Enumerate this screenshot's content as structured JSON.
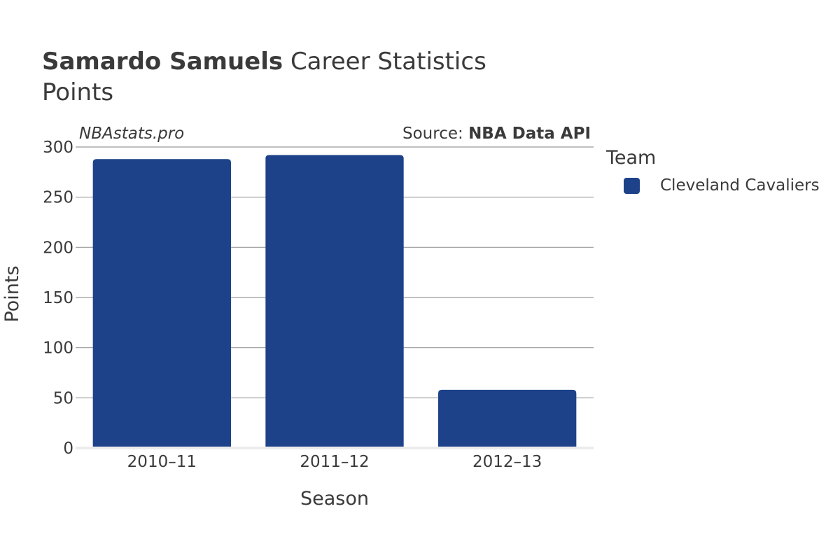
{
  "header": {
    "player_name": "Samardo Samuels",
    "title_suffix": "Career Statistics",
    "subtitle": "Points"
  },
  "watermark": "NBAstats.pro",
  "source": {
    "prefix": "Source: ",
    "name": "NBA Data API"
  },
  "legend": {
    "title": "Team",
    "items": [
      {
        "label": "Cleveland Cavaliers",
        "color": "#1d4289"
      }
    ]
  },
  "chart_data": {
    "type": "bar",
    "categories": [
      "2010–11",
      "2011–12",
      "2012–13"
    ],
    "series": [
      {
        "name": "Cleveland Cavaliers",
        "values": [
          288,
          292,
          58
        ],
        "color": "#1d4289"
      }
    ],
    "xlabel": "Season",
    "ylabel": "Points",
    "ylim": [
      0,
      300
    ],
    "yticks": [
      0,
      50,
      100,
      150,
      200,
      250,
      300
    ],
    "grid": true,
    "legend_position": "right"
  }
}
